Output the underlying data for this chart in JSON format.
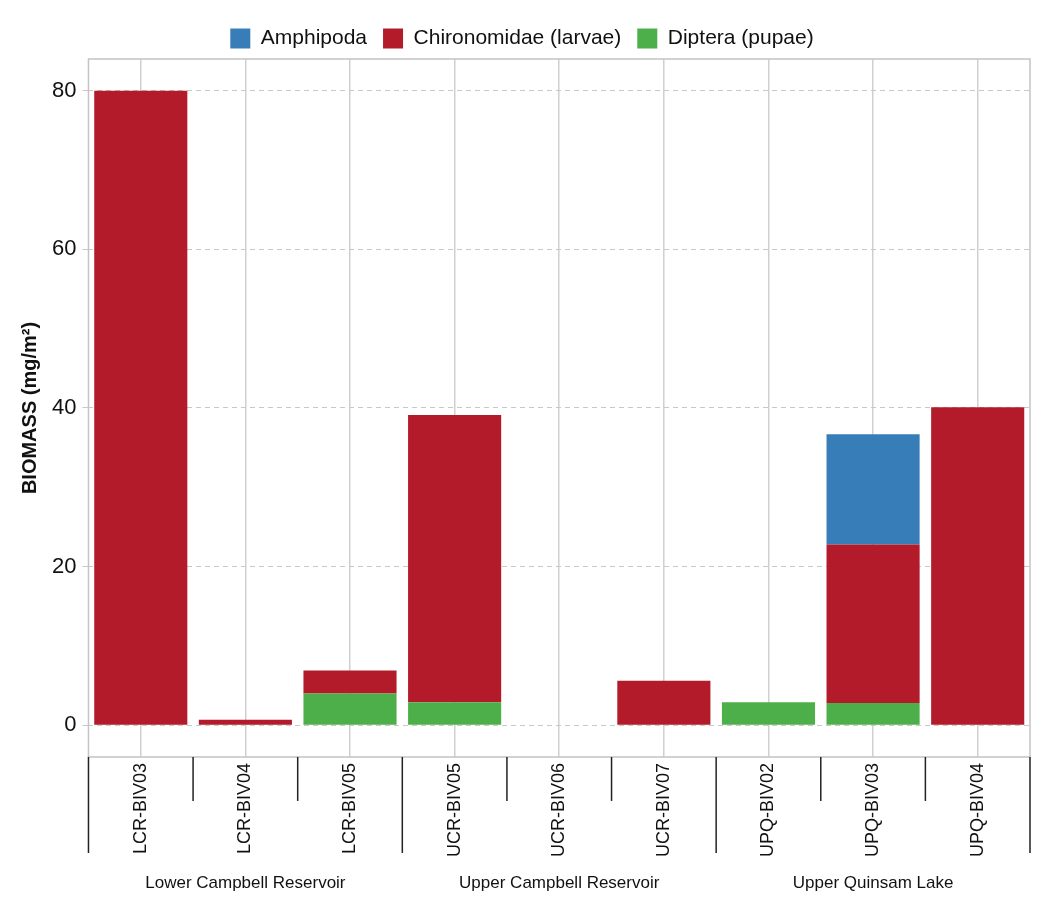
{
  "chart_data": {
    "type": "bar",
    "categories": [
      "LCR-BIV03",
      "LCR-BIV04",
      "LCR-BIV05",
      "UCR-BIV05",
      "UCR-BIV06",
      "UCR-BIV07",
      "UPQ-BIV02",
      "UPQ-BIV03",
      "UPQ-BIV04"
    ],
    "series": [
      {
        "name": "Diptera (pupae)",
        "color": "#4daf4a",
        "values": [
          null,
          null,
          4.0,
          2.9,
          null,
          null,
          2.9,
          2.8,
          null
        ]
      },
      {
        "name": "Chironomidae (larvae)",
        "color": "#b31b2a",
        "values": [
          80,
          0.7,
          2.9,
          36.2,
          null,
          5.6,
          null,
          20.0,
          40.1
        ]
      },
      {
        "name": "Amphipoda",
        "color": "#377eb8",
        "values": [
          null,
          null,
          null,
          null,
          null,
          null,
          null,
          13.9,
          null
        ]
      }
    ],
    "stacked": true,
    "ylabel": "BIOMASS (mg/m²)",
    "ylim": [
      -4,
      84
    ],
    "yticks": [
      0,
      20,
      40,
      60,
      80
    ],
    "grid": true,
    "legend": "top",
    "annotations": [
      "Lower Campbell Reservoir",
      "Upper Campbell Reservoir",
      "Upper Quinsam Lake"
    ]
  }
}
